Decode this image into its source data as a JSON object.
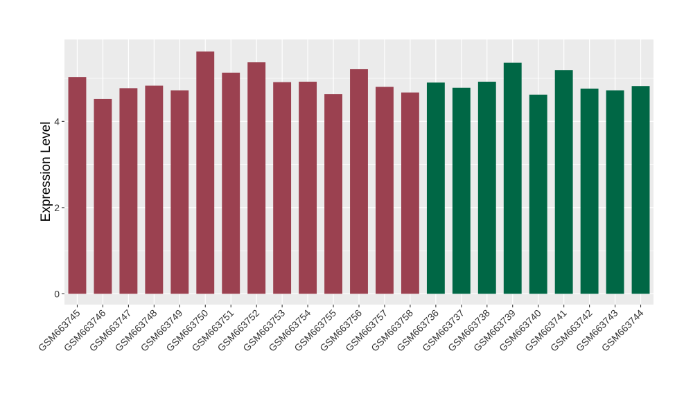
{
  "chart_data": {
    "type": "bar",
    "title": "",
    "xlabel": "",
    "ylabel": "Expression Level",
    "ylim": [
      -0.25,
      5.9
    ],
    "yticks": [
      0,
      2,
      4
    ],
    "grid": true,
    "legend": "none",
    "panel_background": "#ebebeb",
    "grid_color": "#ffffff",
    "categories": [
      "GSM663745",
      "GSM663746",
      "GSM663747",
      "GSM663748",
      "GSM663749",
      "GSM663750",
      "GSM663751",
      "GSM663752",
      "GSM663753",
      "GSM663754",
      "GSM663755",
      "GSM663756",
      "GSM663757",
      "GSM663758",
      "GSM663736",
      "GSM663737",
      "GSM663738",
      "GSM663739",
      "GSM663740",
      "GSM663741",
      "GSM663742",
      "GSM663743",
      "GSM663744"
    ],
    "values": [
      5.03,
      4.52,
      4.77,
      4.83,
      4.72,
      5.62,
      5.13,
      5.37,
      4.91,
      4.92,
      4.63,
      5.21,
      4.8,
      4.67,
      4.9,
      4.78,
      4.92,
      5.36,
      4.62,
      5.19,
      4.76,
      4.72,
      4.82
    ],
    "bar_colors": [
      "#9b4150",
      "#9b4150",
      "#9b4150",
      "#9b4150",
      "#9b4150",
      "#9b4150",
      "#9b4150",
      "#9b4150",
      "#9b4150",
      "#9b4150",
      "#9b4150",
      "#9b4150",
      "#9b4150",
      "#9b4150",
      "#006745",
      "#006745",
      "#006745",
      "#006745",
      "#006745",
      "#006745",
      "#006745",
      "#006745",
      "#006745"
    ]
  }
}
